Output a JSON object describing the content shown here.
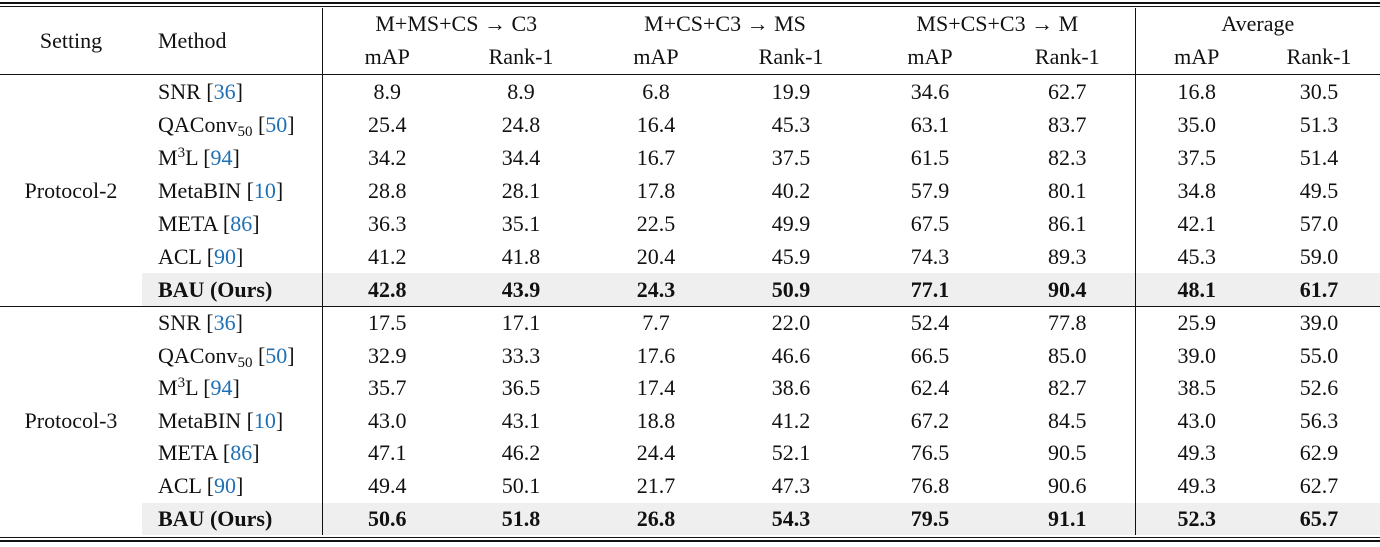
{
  "header": {
    "setting": "Setting",
    "method": "Method",
    "groups": [
      "M+MS+CS → C3",
      "M+CS+C3 → MS",
      "MS+CS+C3 → M",
      "Average"
    ],
    "metrics": [
      "mAP",
      "Rank-1"
    ]
  },
  "blocks": [
    {
      "setting": "Protocol-2",
      "rows": [
        {
          "method": {
            "base": "SNR",
            "cite": "36"
          },
          "values": [
            "8.9",
            "8.9",
            "6.8",
            "19.9",
            "34.6",
            "62.7",
            "16.8",
            "30.5"
          ]
        },
        {
          "method": {
            "base": "QAConv",
            "sub": "50",
            "cite": "50"
          },
          "values": [
            "25.4",
            "24.8",
            "16.4",
            "45.3",
            "63.1",
            "83.7",
            "35.0",
            "51.3"
          ]
        },
        {
          "method": {
            "base": "M",
            "sup": "3",
            "rest": "L",
            "cite": "94"
          },
          "values": [
            "34.2",
            "34.4",
            "16.7",
            "37.5",
            "61.5",
            "82.3",
            "37.5",
            "51.4"
          ]
        },
        {
          "method": {
            "base": "MetaBIN",
            "cite": "10"
          },
          "values": [
            "28.8",
            "28.1",
            "17.8",
            "40.2",
            "57.9",
            "80.1",
            "34.8",
            "49.5"
          ]
        },
        {
          "method": {
            "base": "META",
            "cite": "86"
          },
          "values": [
            "36.3",
            "35.1",
            "22.5",
            "49.9",
            "67.5",
            "86.1",
            "42.1",
            "57.0"
          ]
        },
        {
          "method": {
            "base": "ACL",
            "cite": "90"
          },
          "values": [
            "41.2",
            "41.8",
            "20.4",
            "45.9",
            "74.3",
            "89.3",
            "45.3",
            "59.0"
          ]
        },
        {
          "method": {
            "base": "BAU (Ours)"
          },
          "ours": true,
          "values": [
            "42.8",
            "43.9",
            "24.3",
            "50.9",
            "77.1",
            "90.4",
            "48.1",
            "61.7"
          ]
        }
      ]
    },
    {
      "setting": "Protocol-3",
      "rows": [
        {
          "method": {
            "base": "SNR",
            "cite": "36"
          },
          "values": [
            "17.5",
            "17.1",
            "7.7",
            "22.0",
            "52.4",
            "77.8",
            "25.9",
            "39.0"
          ]
        },
        {
          "method": {
            "base": "QAConv",
            "sub": "50",
            "cite": "50"
          },
          "values": [
            "32.9",
            "33.3",
            "17.6",
            "46.6",
            "66.5",
            "85.0",
            "39.0",
            "55.0"
          ]
        },
        {
          "method": {
            "base": "M",
            "sup": "3",
            "rest": "L",
            "cite": "94"
          },
          "values": [
            "35.7",
            "36.5",
            "17.4",
            "38.6",
            "62.4",
            "82.7",
            "38.5",
            "52.6"
          ]
        },
        {
          "method": {
            "base": "MetaBIN",
            "cite": "10"
          },
          "values": [
            "43.0",
            "43.1",
            "18.8",
            "41.2",
            "67.2",
            "84.5",
            "43.0",
            "56.3"
          ]
        },
        {
          "method": {
            "base": "META",
            "cite": "86"
          },
          "values": [
            "47.1",
            "46.2",
            "24.4",
            "52.1",
            "76.5",
            "90.5",
            "49.3",
            "62.9"
          ]
        },
        {
          "method": {
            "base": "ACL",
            "cite": "90"
          },
          "values": [
            "49.4",
            "50.1",
            "21.7",
            "47.3",
            "76.8",
            "90.6",
            "49.3",
            "62.7"
          ]
        },
        {
          "method": {
            "base": "BAU (Ours)"
          },
          "ours": true,
          "values": [
            "50.6",
            "51.8",
            "26.8",
            "54.3",
            "79.5",
            "91.1",
            "52.3",
            "65.7"
          ]
        }
      ]
    }
  ],
  "colors": {
    "citation": "#1f6fb5",
    "highlight_row": "#efefef"
  }
}
